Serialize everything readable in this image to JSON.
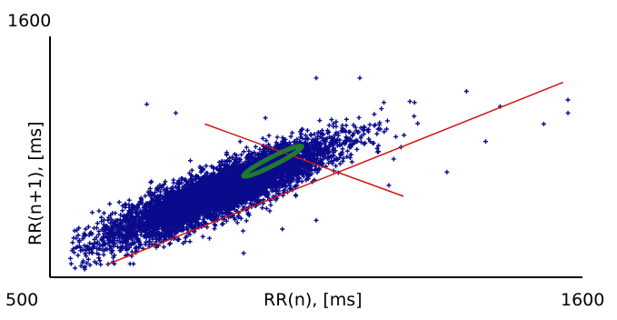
{
  "chart_data": {
    "type": "scatter",
    "title": "",
    "xlabel": "RR(n), [ms]",
    "ylabel": "RR(n+1), [ms]",
    "xlim": [
      500,
      1600
    ],
    "ylim": [
      500,
      1600
    ],
    "x_tick_labels": [
      "500",
      "1600"
    ],
    "y_tick_labels": [
      "1600"
    ],
    "grid": false,
    "colors": {
      "points": "#0a0a8c",
      "axes": "#000000",
      "sd_lines": "#d01414",
      "ellipse": "#1f7a2e"
    },
    "series": [
      {
        "points_cluster": {
          "approx_count": 6000,
          "center_ms": [
            850,
            890
          ],
          "sd1_ms": 40,
          "sd2_ms": 160
        },
        "outliers": [
          [
            700,
            1290
          ],
          [
            1050,
            1410
          ],
          [
            1140,
            1410
          ],
          [
            1100,
            1060
          ],
          [
            1200,
            920
          ],
          [
            820,
            850
          ],
          [
            780,
            680
          ],
          [
            900,
            610
          ],
          [
            620,
            560
          ],
          [
            660,
            720
          ],
          [
            1400,
            1120
          ],
          [
            1210,
            1040
          ],
          [
            1520,
            1200
          ],
          [
            1570,
            1310
          ],
          [
            1570,
            1250
          ],
          [
            1430,
            1280
          ],
          [
            980,
            720
          ],
          [
            1050,
            760
          ],
          [
            760,
            1250
          ],
          [
            1320,
            980
          ]
        ]
      }
    ],
    "identity_line": {
      "from": [
        620,
        560
      ],
      "to": [
        1560,
        1390
      ]
    },
    "sd1_line": {
      "from": [
        820,
        1200
      ],
      "to": [
        1230,
        870
      ]
    },
    "ellipse": {
      "center": [
        960,
        1030
      ],
      "sd1": 50,
      "sd2": 170
    }
  }
}
